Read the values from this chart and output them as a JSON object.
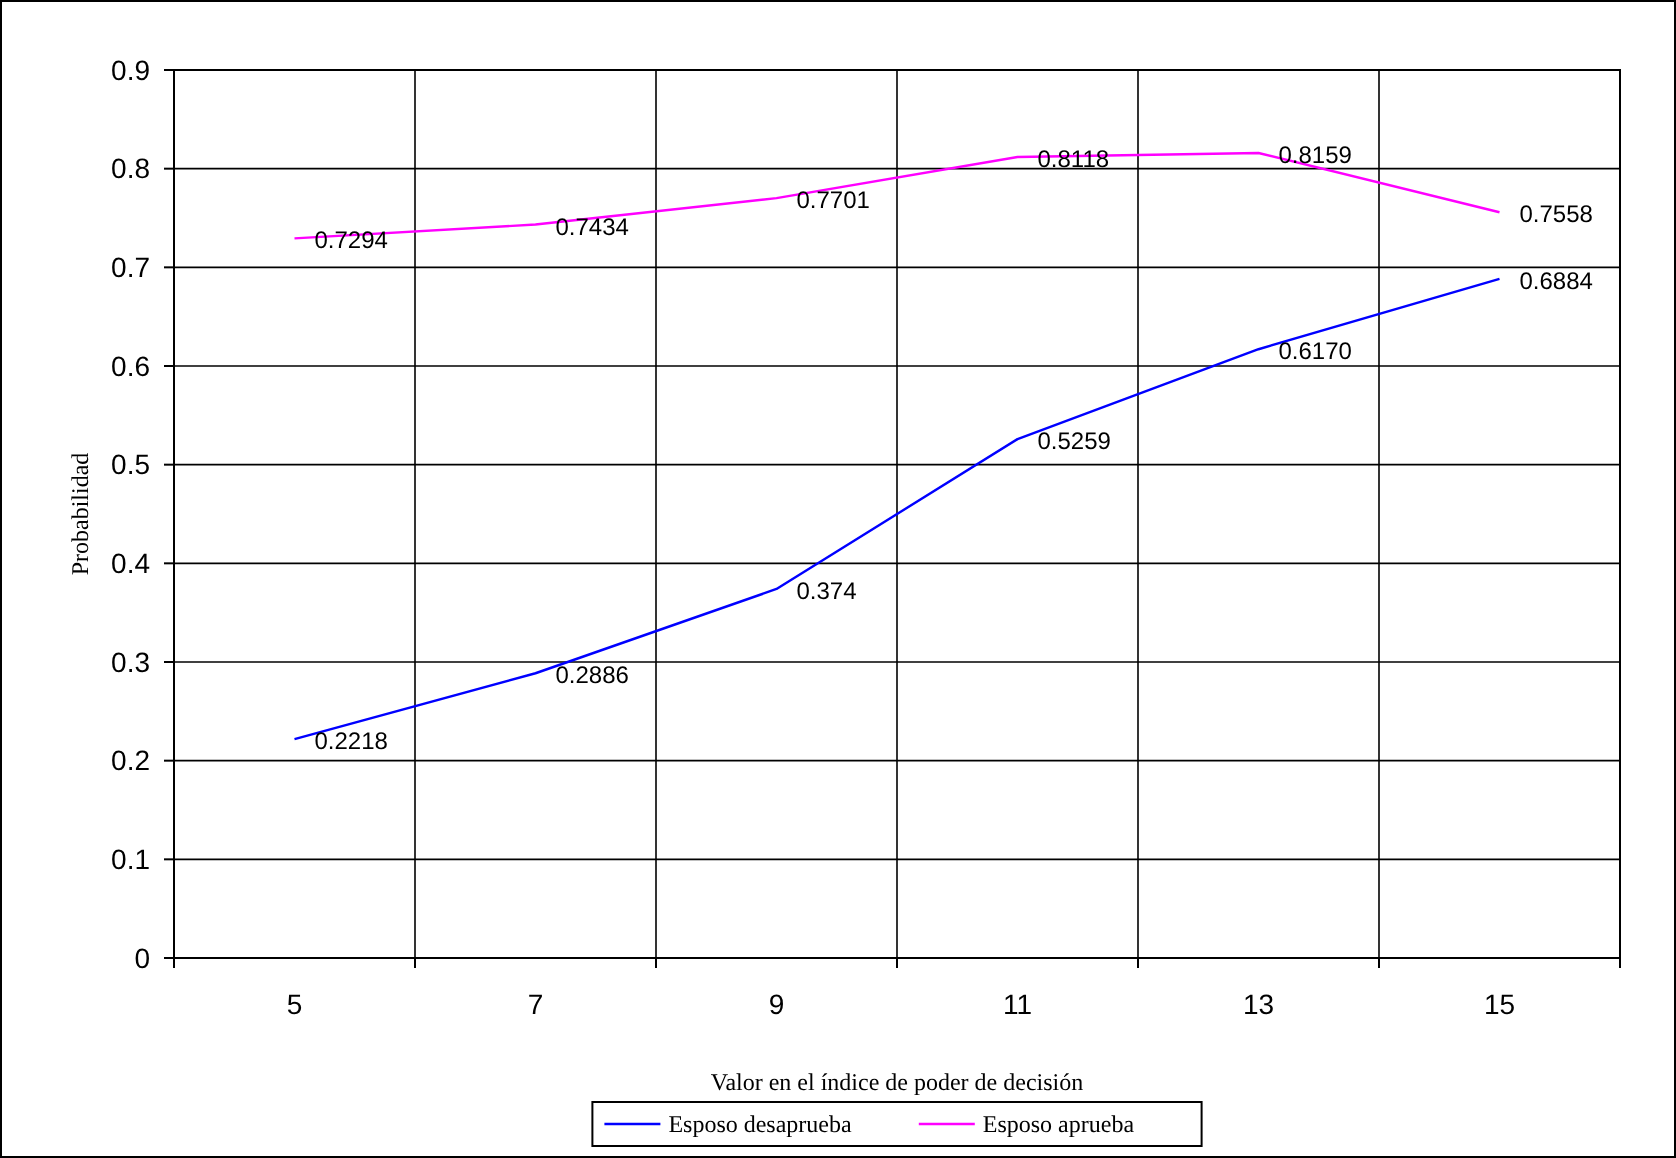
{
  "chart_data": {
    "type": "line",
    "xlabel": "Valor en el índice de poder de decisión",
    "ylabel": "Probabilidad",
    "categories": [
      "5",
      "7",
      "9",
      "11",
      "13",
      "15"
    ],
    "ylim": [
      0,
      0.9
    ],
    "yticks": [
      {
        "value": 0,
        "label": "0"
      },
      {
        "value": 0.1,
        "label": "0.1"
      },
      {
        "value": 0.2,
        "label": "0.2"
      },
      {
        "value": 0.3,
        "label": "0.3"
      },
      {
        "value": 0.4,
        "label": "0.4"
      },
      {
        "value": 0.5,
        "label": "0.5"
      },
      {
        "value": 0.6,
        "label": "0.6"
      },
      {
        "value": 0.7,
        "label": "0.7"
      },
      {
        "value": 0.8,
        "label": "0.8"
      },
      {
        "value": 0.9,
        "label": "0.9"
      }
    ],
    "grid": true,
    "legend": "bottom",
    "marker": "none",
    "line_style": "solid",
    "series": [
      {
        "name": "Esposo desaprueba",
        "color": "#0000ff",
        "values": [
          0.2218,
          0.2886,
          0.374,
          0.5259,
          0.617,
          0.6884
        ],
        "value_labels": [
          "0.2218",
          "0.2886",
          "0.374",
          "0.5259",
          "0.6170",
          "0.6884"
        ]
      },
      {
        "name": "Esposo aprueba",
        "color": "#ff00ff",
        "values": [
          0.7294,
          0.7434,
          0.7701,
          0.8118,
          0.8159,
          0.7558
        ],
        "value_labels": [
          "0.7294",
          "0.7434",
          "0.7701",
          "0.8118",
          "0.8159",
          "0.7558"
        ]
      }
    ]
  }
}
